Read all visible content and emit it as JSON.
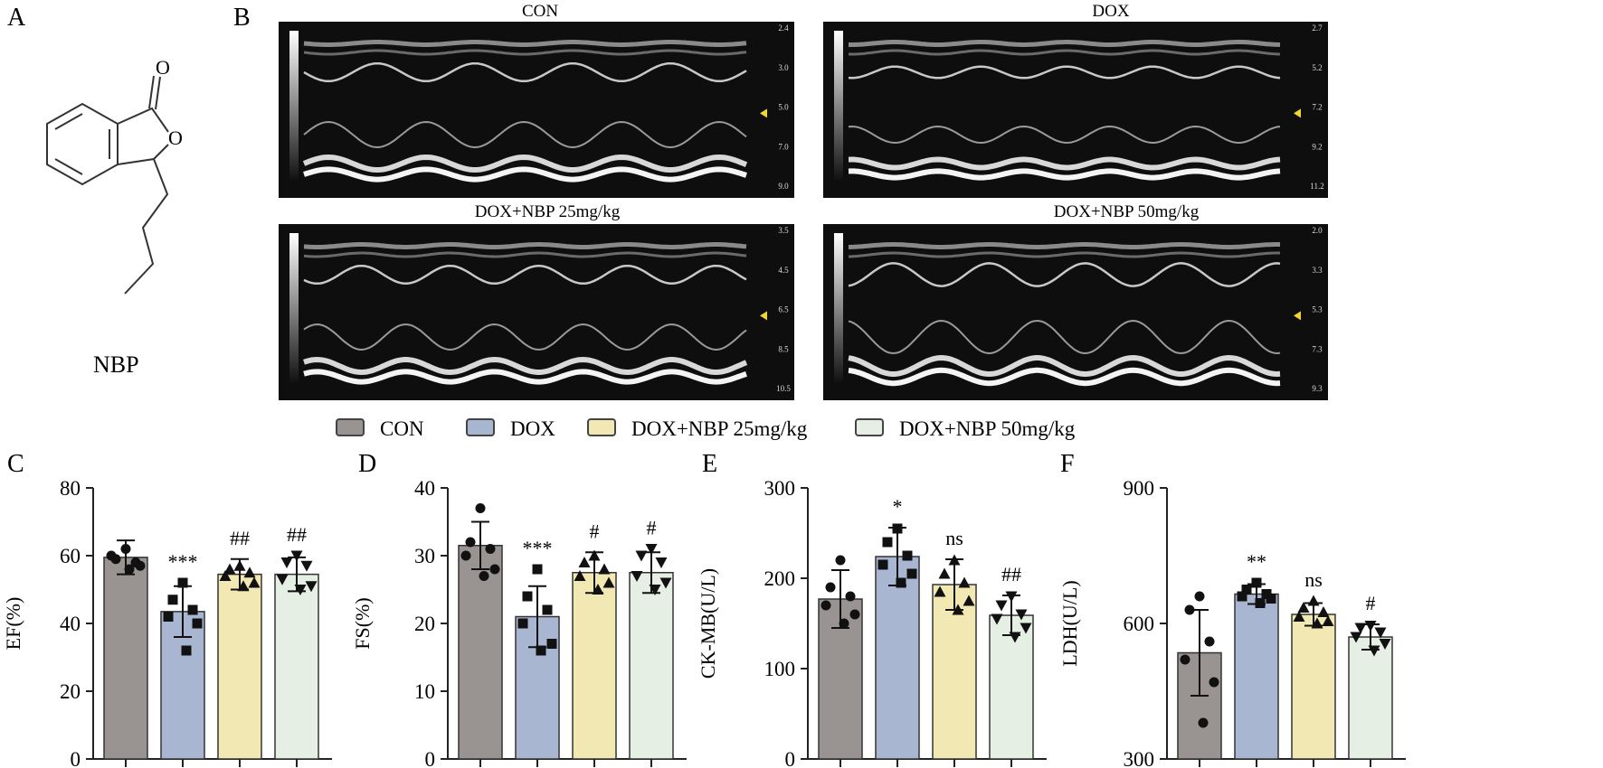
{
  "panel_letters": {
    "a": "A",
    "b": "B",
    "c": "C",
    "d": "D",
    "e": "E",
    "f": "F"
  },
  "molecule": {
    "name": "NBP",
    "atom_labels": [
      "O",
      "O"
    ]
  },
  "echo_panels": [
    {
      "title": "CON",
      "scale": [
        "2.4",
        "3.0",
        "5.0",
        "7.0",
        "9.0"
      ]
    },
    {
      "title": "DOX",
      "scale": [
        "2.7",
        "5.2",
        "7.2",
        "9.2",
        "11.2"
      ]
    },
    {
      "title": "DOX+NBP 25mg/kg",
      "scale": [
        "3.5",
        "4.5",
        "6.5",
        "8.5",
        "10.5"
      ]
    },
    {
      "title": "DOX+NBP 50mg/kg",
      "scale": [
        "2.0",
        "3.3",
        "5.3",
        "7.3",
        "9.3"
      ]
    }
  ],
  "legend": [
    {
      "label": "CON",
      "color": "#999391"
    },
    {
      "label": "DOX",
      "color": "#a8b6d1"
    },
    {
      "label": "DOX+NBP 25mg/kg",
      "color": "#f2e8b3"
    },
    {
      "label": "DOX+NBP 50mg/kg",
      "color": "#e5efe3"
    }
  ],
  "chart_data": [
    {
      "type": "bar",
      "panel": "C",
      "ylabel": "EF(%)",
      "ylim": [
        0,
        80
      ],
      "yticks": [
        0,
        20,
        40,
        60,
        80
      ],
      "categories": [
        "CON",
        "DOX",
        "DOX+NBP 25mg/kg",
        "DOX+NBP 50mg/kg"
      ],
      "values": [
        59.5,
        43.5,
        54.5,
        54.5
      ],
      "errors": [
        5,
        7.5,
        4.5,
        5
      ],
      "points": [
        [
          62,
          59,
          58,
          60,
          57,
          56
        ],
        [
          52,
          47,
          44,
          42,
          40,
          32
        ],
        [
          57,
          56,
          55,
          54,
          52,
          51
        ],
        [
          60,
          58,
          57,
          53,
          51,
          50
        ]
      ],
      "annotations": [
        "",
        "***",
        "##",
        "##"
      ]
    },
    {
      "type": "bar",
      "panel": "D",
      "ylabel": "FS(%)",
      "ylim": [
        0,
        40
      ],
      "yticks": [
        0,
        10,
        20,
        30,
        40
      ],
      "categories": [
        "CON",
        "DOX",
        "DOX+NBP 25mg/kg",
        "DOX+NBP 50mg/kg"
      ],
      "values": [
        31.5,
        21,
        27.5,
        27.5
      ],
      "errors": [
        3.5,
        4.5,
        3,
        3
      ],
      "points": [
        [
          37,
          32,
          31,
          30,
          28,
          27
        ],
        [
          28,
          24,
          22,
          20,
          17,
          16
        ],
        [
          30,
          29,
          28,
          27,
          26,
          25
        ],
        [
          31,
          30,
          29,
          27,
          26,
          25
        ]
      ],
      "annotations": [
        "",
        "***",
        "#",
        "#"
      ]
    },
    {
      "type": "bar",
      "panel": "E",
      "ylabel": "CK-MB(U/L)",
      "ylim": [
        0,
        300
      ],
      "yticks": [
        0,
        100,
        200,
        300
      ],
      "categories": [
        "CON",
        "DOX",
        "DOX+NBP 25mg/kg",
        "DOX+NBP 50mg/kg"
      ],
      "values": [
        177,
        224,
        193,
        159
      ],
      "errors": [
        32,
        32,
        28,
        22
      ],
      "points": [
        [
          220,
          190,
          180,
          170,
          160,
          150
        ],
        [
          255,
          240,
          225,
          215,
          205,
          195
        ],
        [
          220,
          205,
          195,
          185,
          175,
          165
        ],
        [
          180,
          170,
          160,
          155,
          145,
          135
        ]
      ],
      "annotations": [
        "",
        "*",
        "ns",
        "##"
      ]
    },
    {
      "type": "bar",
      "panel": "F",
      "ylabel": "LDH(U/L)",
      "ylim": [
        300,
        900
      ],
      "yticks": [
        300,
        600,
        900
      ],
      "categories": [
        "CON",
        "DOX",
        "DOX+NBP 25mg/kg",
        "DOX+NBP 50mg/kg"
      ],
      "values": [
        535,
        665,
        620,
        570
      ],
      "errors": [
        95,
        22,
        25,
        28
      ],
      "points": [
        [
          660,
          630,
          560,
          520,
          470,
          380
        ],
        [
          690,
          675,
          665,
          660,
          655,
          645
        ],
        [
          650,
          635,
          625,
          615,
          605,
          600
        ],
        [
          595,
          590,
          580,
          570,
          555,
          540
        ]
      ],
      "annotations": [
        "",
        "**",
        "ns",
        "#"
      ]
    }
  ]
}
